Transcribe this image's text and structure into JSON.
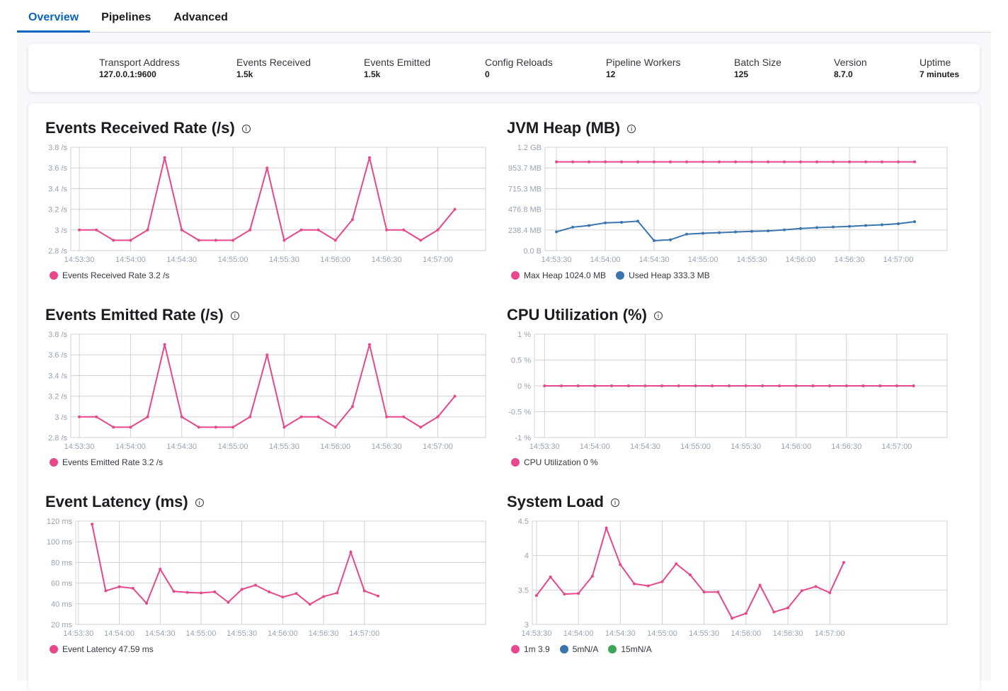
{
  "tabs": [
    {
      "label": "Overview",
      "active": true
    },
    {
      "label": "Pipelines"
    },
    {
      "label": "Advanced"
    }
  ],
  "summary": [
    {
      "label": "Transport Address",
      "value": "127.0.0.1:9600"
    },
    {
      "label": "Events Received",
      "value": "1.5k"
    },
    {
      "label": "Events Emitted",
      "value": "1.5k"
    },
    {
      "label": "Config Reloads",
      "value": "0"
    },
    {
      "label": "Pipeline Workers",
      "value": "12"
    },
    {
      "label": "Batch Size",
      "value": "125"
    },
    {
      "label": "Version",
      "value": "8.7.0"
    },
    {
      "label": "Uptime",
      "value": "7 minutes"
    }
  ],
  "colors": {
    "pink": "#e7478b",
    "blue": "#3a75b0",
    "green": "#3ea65a",
    "grid": "#d3d3d3"
  },
  "chart_data": [
    {
      "id": "received",
      "type": "line",
      "title": "Events Received Rate (/s)",
      "info_icon": "info-icon",
      "xlim": [
        "14:53:25",
        "14:57:28"
      ],
      "xticks": [
        "14:53:30",
        "14:54:00",
        "14:54:30",
        "14:55:00",
        "14:55:30",
        "14:56:00",
        "14:56:30",
        "14:57:00"
      ],
      "ylim": [
        2.8,
        3.8
      ],
      "yticks": [
        {
          "v": 3.8,
          "label": "3.8 /s"
        },
        {
          "v": 3.6,
          "label": "3.6 /s"
        },
        {
          "v": 3.4,
          "label": "3.4 /s"
        },
        {
          "v": 3.2,
          "label": "3.2 /s"
        },
        {
          "v": 3,
          "label": "3 /s"
        },
        {
          "v": 2.8,
          "label": "2.8 /s"
        }
      ],
      "x_start": "14:53:30",
      "x_step_seconds": 10,
      "series": [
        {
          "legend": "Events Received Rate 3.2 /s",
          "color": "#e7478b",
          "values": [
            3,
            3,
            2.9,
            2.9,
            3,
            3.7,
            3,
            2.9,
            2.9,
            2.9,
            3,
            3.6,
            2.9,
            3,
            3,
            2.9,
            3.1,
            3.7,
            3,
            3,
            2.9,
            3,
            3.2
          ]
        }
      ]
    },
    {
      "id": "heap",
      "type": "line",
      "title": "JVM Heap (MB)",
      "info_icon": "info-icon",
      "xlim": [
        "14:53:23",
        "14:57:30"
      ],
      "xticks": [
        "14:53:30",
        "14:54:00",
        "14:54:30",
        "14:55:00",
        "14:55:30",
        "14:56:00",
        "14:56:30",
        "14:57:00"
      ],
      "ylim": [
        0,
        1192.1
      ],
      "yticks": [
        {
          "v": 1192.1,
          "label": "1.2 GB"
        },
        {
          "v": 953.7,
          "label": "953.7 MB"
        },
        {
          "v": 715.3,
          "label": "715.3 MB"
        },
        {
          "v": 476.8,
          "label": "476.8 MB"
        },
        {
          "v": 238.4,
          "label": "238.4 MB"
        },
        {
          "v": 0,
          "label": "0.0 B"
        }
      ],
      "x_start": "14:53:30",
      "x_step_seconds": 10,
      "series": [
        {
          "legend": "Max Heap 1024.0 MB",
          "color": "#e7478b",
          "values": [
            1024,
            1024,
            1024,
            1024,
            1024,
            1024,
            1024,
            1024,
            1024,
            1024,
            1024,
            1024,
            1024,
            1024,
            1024,
            1024,
            1024,
            1024,
            1024,
            1024,
            1024,
            1024,
            1024
          ]
        },
        {
          "legend": "Used Heap 333.3 MB",
          "color": "#3a75b0",
          "values": [
            217,
            270,
            290,
            320,
            327,
            340,
            115,
            125,
            190,
            200,
            207,
            215,
            222,
            228,
            240,
            255,
            265,
            272,
            280,
            290,
            298,
            310,
            333.3
          ]
        }
      ]
    },
    {
      "id": "emitted",
      "type": "line",
      "title": "Events Emitted Rate (/s)",
      "info_icon": "info-icon",
      "xlim": [
        "14:53:25",
        "14:57:28"
      ],
      "xticks": [
        "14:53:30",
        "14:54:00",
        "14:54:30",
        "14:55:00",
        "14:55:30",
        "14:56:00",
        "14:56:30",
        "14:57:00"
      ],
      "ylim": [
        2.8,
        3.8
      ],
      "yticks": [
        {
          "v": 3.8,
          "label": "3.8 /s"
        },
        {
          "v": 3.6,
          "label": "3.6 /s"
        },
        {
          "v": 3.4,
          "label": "3.4 /s"
        },
        {
          "v": 3.2,
          "label": "3.2 /s"
        },
        {
          "v": 3,
          "label": "3 /s"
        },
        {
          "v": 2.8,
          "label": "2.8 /s"
        }
      ],
      "x_start": "14:53:30",
      "x_step_seconds": 10,
      "series": [
        {
          "legend": "Events Emitted Rate 3.2 /s",
          "color": "#e7478b",
          "values": [
            3,
            3,
            2.9,
            2.9,
            3,
            3.7,
            3,
            2.9,
            2.9,
            2.9,
            3,
            3.6,
            2.9,
            3,
            3,
            2.9,
            3.1,
            3.7,
            3,
            3,
            2.9,
            3,
            3.2
          ]
        }
      ]
    },
    {
      "id": "cpu",
      "type": "line",
      "title": "CPU Utilization (%)",
      "info_icon": "info-icon",
      "xlim": [
        "14:53:24",
        "14:57:30"
      ],
      "xticks": [
        "14:53:30",
        "14:54:00",
        "14:54:30",
        "14:55:00",
        "14:55:30",
        "14:56:00",
        "14:56:30",
        "14:57:00"
      ],
      "ylim": [
        -1,
        1
      ],
      "yticks": [
        {
          "v": 1,
          "label": "1 %"
        },
        {
          "v": 0.5,
          "label": "0.5 %"
        },
        {
          "v": 0,
          "label": "0 %"
        },
        {
          "v": -0.5,
          "label": "-0.5 %"
        },
        {
          "v": -1,
          "label": "-1 %"
        }
      ],
      "x_start": "14:53:30",
      "x_step_seconds": 10,
      "series": [
        {
          "legend": "CPU Utilization 0 %",
          "color": "#e7478b",
          "values": [
            0,
            0,
            0,
            0,
            0,
            0,
            0,
            0,
            0,
            0,
            0,
            0,
            0,
            0,
            0,
            0,
            0,
            0,
            0,
            0,
            0,
            0,
            0
          ]
        }
      ]
    },
    {
      "id": "latency",
      "type": "line",
      "title": "Event Latency (ms)",
      "info_icon": "info-icon",
      "xlim": [
        "14:53:28",
        "14:58:29"
      ],
      "xticks": [
        "14:53:30",
        "14:54:00",
        "14:54:30",
        "14:55:00",
        "14:55:30",
        "14:56:00",
        "14:56:30",
        "14:57:00"
      ],
      "ylim": [
        20,
        120
      ],
      "yticks": [
        {
          "v": 120,
          "label": "120 ms"
        },
        {
          "v": 100,
          "label": "100 ms"
        },
        {
          "v": 80,
          "label": "80 ms"
        },
        {
          "v": 60,
          "label": "60 ms"
        },
        {
          "v": 40,
          "label": "40 ms"
        },
        {
          "v": 20,
          "label": "20 ms"
        }
      ],
      "x_start": "14:53:40",
      "x_step_seconds": 10,
      "series": [
        {
          "legend": "Event Latency 47.59 ms",
          "color": "#e7478b",
          "values": [
            117,
            52.5,
            56.5,
            55,
            40.5,
            73.5,
            52,
            51,
            50.5,
            51.5,
            41.5,
            54,
            58,
            51.5,
            46.5,
            50,
            39.5,
            47,
            50.5,
            90,
            52.5,
            47.59
          ]
        }
      ]
    },
    {
      "id": "load",
      "type": "line",
      "title": "System Load",
      "info_icon": "info-icon",
      "xlim": [
        "14:53:27",
        "14:58:24"
      ],
      "xticks": [
        "14:53:30",
        "14:54:00",
        "14:54:30",
        "14:55:00",
        "14:55:30",
        "14:56:00",
        "14:56:30",
        "14:57:00"
      ],
      "ylim": [
        3,
        4.5
      ],
      "yticks": [
        {
          "v": 4.5,
          "label": "4.5"
        },
        {
          "v": 4,
          "label": "4"
        },
        {
          "v": 3.5,
          "label": "3.5"
        },
        {
          "v": 3,
          "label": "3"
        }
      ],
      "x_start": "14:53:30",
      "x_step_seconds": 10,
      "series": [
        {
          "legend": "1m 3.9",
          "color": "#e7478b",
          "values": [
            3.42,
            3.69,
            3.44,
            3.45,
            3.7,
            4.4,
            3.87,
            3.59,
            3.56,
            3.62,
            3.88,
            3.72,
            3.47,
            3.47,
            3.09,
            3.16,
            3.57,
            3.18,
            3.24,
            3.49,
            3.55,
            3.46,
            3.9
          ]
        },
        {
          "legend": "5mN/A",
          "color": "#3a75b0",
          "values": []
        },
        {
          "legend": "15mN/A",
          "color": "#3ea65a",
          "values": []
        }
      ]
    }
  ]
}
